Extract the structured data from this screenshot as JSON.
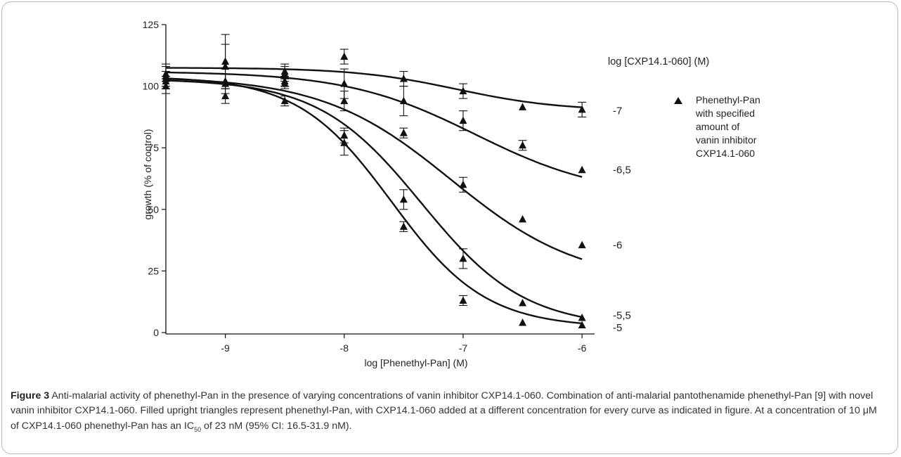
{
  "chart_data": {
    "type": "scatter",
    "xlabel": "log [Phenethyl-Pan] (M)",
    "ylabel": "growth (% of control)",
    "xlim": [
      -9.5,
      -5.8
    ],
    "ylim": [
      0,
      125
    ],
    "xticks": [
      -9,
      -8,
      -7,
      -6
    ],
    "yticks": [
      0,
      25,
      50,
      75,
      100,
      125
    ],
    "x_tick_labels": [
      "-9",
      "-8",
      "-7",
      "-6"
    ],
    "y_tick_labels": [
      "0",
      "25",
      "50",
      "75",
      "100",
      "125"
    ],
    "grid": false,
    "legend_title": "log [CXP14.1-060] (M)",
    "legend": {
      "marker": "filled-triangle",
      "lines": [
        "Phenethyl-Pan",
        "with specified",
        "amount of",
        "vanin inhibitor",
        "CXP14.1-060"
      ],
      "position": "right"
    },
    "series": [
      {
        "name": "-7",
        "curve": {
          "top": 107.5,
          "bottom": 90,
          "logIC50": -7.05,
          "hill": 1
        },
        "points": [
          {
            "x": -9.5,
            "y": 104,
            "err": 5
          },
          {
            "x": -9,
            "y": 110,
            "err": 11
          },
          {
            "x": -8.5,
            "y": 106,
            "err": 3
          },
          {
            "x": -8,
            "y": 112,
            "err": 3
          },
          {
            "x": -7.5,
            "y": 103,
            "err": 3
          },
          {
            "x": -7,
            "y": 98,
            "err": 3
          },
          {
            "x": -6.5,
            "y": 91.5,
            "err": 0.5
          },
          {
            "x": -6,
            "y": 90.5,
            "err": 3
          }
        ]
      },
      {
        "name": "-6,5",
        "curve": {
          "top": 106,
          "bottom": 55,
          "logIC50": -6.9,
          "hill": 0.8
        },
        "points": [
          {
            "x": -9.5,
            "y": 103,
            "err": 3
          },
          {
            "x": -9,
            "y": 108,
            "err": 9
          },
          {
            "x": -8.5,
            "y": 105,
            "err": 3
          },
          {
            "x": -8,
            "y": 101,
            "err": 6
          },
          {
            "x": -7.5,
            "y": 94,
            "err": 6
          },
          {
            "x": -7,
            "y": 86,
            "err": 4
          },
          {
            "x": -6.5,
            "y": 76,
            "err": 2
          },
          {
            "x": -6,
            "y": 66,
            "err": 0.5
          }
        ]
      },
      {
        "name": "-6",
        "curve": {
          "top": 104,
          "bottom": 20,
          "logIC50": -7.1,
          "hill": 0.8
        },
        "points": [
          {
            "x": -9.5,
            "y": 102,
            "err": 2
          },
          {
            "x": -9,
            "y": 101,
            "err": 4
          },
          {
            "x": -8.5,
            "y": 102,
            "err": 2
          },
          {
            "x": -8,
            "y": 94,
            "err": 4
          },
          {
            "x": -7.5,
            "y": 81,
            "err": 2
          },
          {
            "x": -7,
            "y": 60,
            "err": 3
          },
          {
            "x": -6.5,
            "y": 46,
            "err": 0.5
          },
          {
            "x": -6,
            "y": 35.5,
            "err": 0.5
          }
        ]
      },
      {
        "name": "-5,5",
        "curve": {
          "top": 103,
          "bottom": 2,
          "logIC50": -7.35,
          "hill": 1
        },
        "points": [
          {
            "x": -9.5,
            "y": 105,
            "err": 3
          },
          {
            "x": -9,
            "y": 96,
            "err": 3
          },
          {
            "x": -8.5,
            "y": 101,
            "err": 2
          },
          {
            "x": -8,
            "y": 80,
            "err": 3
          },
          {
            "x": -7.5,
            "y": 54,
            "err": 4
          },
          {
            "x": -7,
            "y": 30,
            "err": 4
          },
          {
            "x": -6.5,
            "y": 12,
            "err": 0.5
          },
          {
            "x": -6,
            "y": 6,
            "err": 0.5
          }
        ]
      },
      {
        "name": "-5",
        "curve": {
          "top": 104,
          "bottom": 2,
          "logIC50": -7.6,
          "hill": 1.1
        },
        "points": [
          {
            "x": -9.5,
            "y": 100,
            "err": 3
          },
          {
            "x": -9,
            "y": 102,
            "err": 3
          },
          {
            "x": -8.5,
            "y": 94,
            "err": 2
          },
          {
            "x": -8,
            "y": 77,
            "err": 5
          },
          {
            "x": -7.5,
            "y": 43,
            "err": 2
          },
          {
            "x": -7,
            "y": 13,
            "err": 2
          },
          {
            "x": -6.5,
            "y": 4,
            "err": 0.5
          },
          {
            "x": -6,
            "y": 3,
            "err": 0.5
          }
        ]
      }
    ],
    "label_y_values": [
      90,
      66,
      35.5,
      7,
      2
    ]
  },
  "caption": {
    "label": "Figure 3",
    "text_1": " Anti-malarial activity of phenethyl-Pan in the presence of varying concentrations of vanin inhibitor CXP14.1-060. Combination of anti-malarial pantothenamide phenethyl-Pan [9] with novel vanin inhibitor CXP14.1-060. Filled upright triangles represent phenethyl-Pan, with CXP14.1-060 added at a different concentration for every curve as indicated in figure. At a concentration of 10 μM of CXP14.1-060 phenethyl-Pan has an IC",
    "sub": "50",
    "text_2": " of 23 nM (95% CI: 16.5-31.9 nM)."
  }
}
